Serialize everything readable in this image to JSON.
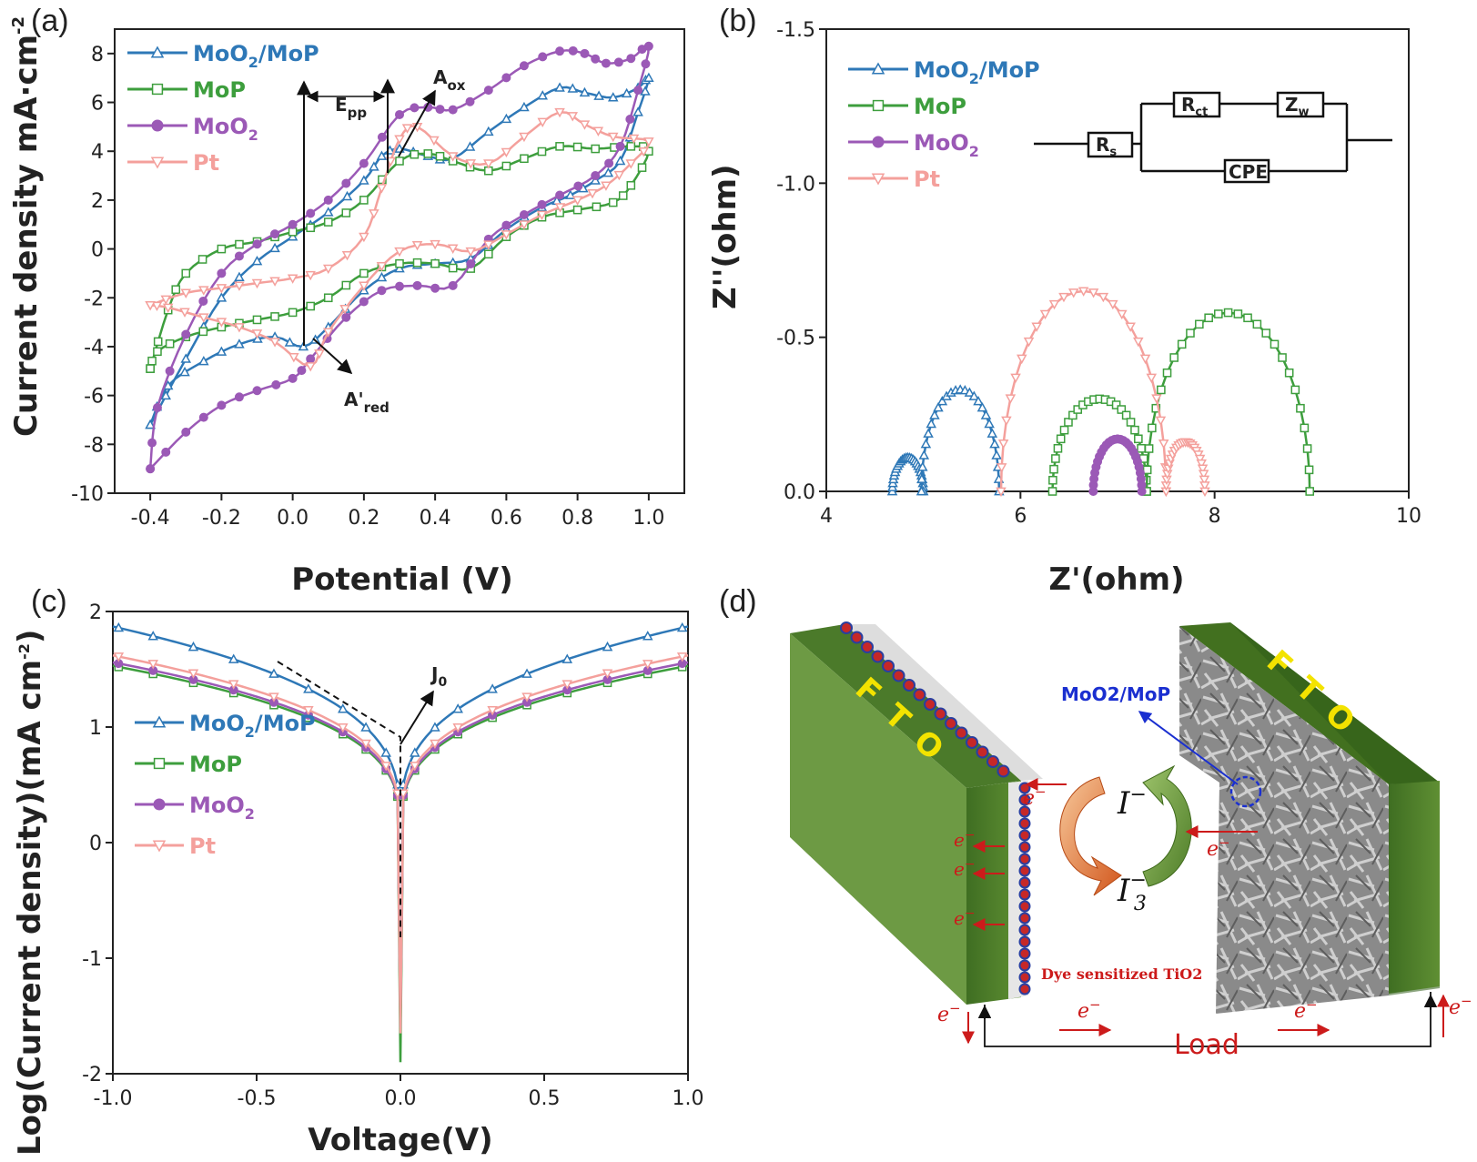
{
  "colors": {
    "MoO2/MoP": "#2e78b7",
    "MoP": "#3d9e3d",
    "MoO2": "#9b59b6",
    "Pt": "#f4a09c",
    "axis": "#222222",
    "fto": "#6b9a3c",
    "red": "#cc1b1b"
  },
  "panels": {
    "a": "(a)",
    "b": "(b)",
    "c": "(c)",
    "d": "(d)"
  },
  "chart_data": [
    {
      "id": "a",
      "type": "line",
      "title": "",
      "xlabel": "Potential (V)",
      "ylabel": "Current density mA·cm",
      "ylabel_sup": "-2",
      "xlim": [
        -0.5,
        1.1
      ],
      "ylim": [
        -10,
        9
      ],
      "xticks": [
        "-0.4",
        "-0.2",
        "0.0",
        "0.2",
        "0.4",
        "0.6",
        "0.8",
        "1.0"
      ],
      "yticks": [
        "-10",
        "-8",
        "-6",
        "-4",
        "-2",
        "0",
        "2",
        "4",
        "6",
        "8"
      ],
      "legend": [
        {
          "name": "MoO",
          "sub": "2",
          "post": "/MoP"
        },
        {
          "name": "MoP",
          "sub": "",
          "post": ""
        },
        {
          "name": "MoO",
          "sub": "2",
          "post": ""
        },
        {
          "name": "Pt",
          "sub": "",
          "post": ""
        }
      ],
      "annotations": {
        "epp": "E",
        "epp_sub": "pp",
        "aox": "A",
        "aox_sub": "ox",
        "ared": "A'",
        "ared_sub": "red"
      },
      "series": [
        {
          "name": "MoO2/MoP",
          "marker": "triangle",
          "forward": [
            [
              -0.4,
              -7.2
            ],
            [
              -0.3,
              -4.5
            ],
            [
              -0.2,
              -2.0
            ],
            [
              -0.1,
              -0.5
            ],
            [
              0.0,
              0.5
            ],
            [
              0.1,
              1.5
            ],
            [
              0.2,
              2.8
            ],
            [
              0.25,
              3.8
            ],
            [
              0.3,
              4.1
            ],
            [
              0.38,
              3.8
            ],
            [
              0.45,
              3.7
            ],
            [
              0.55,
              4.8
            ],
            [
              0.65,
              5.8
            ],
            [
              0.75,
              6.6
            ],
            [
              0.82,
              6.4
            ],
            [
              0.9,
              6.2
            ],
            [
              0.97,
              6.6
            ],
            [
              1.0,
              7.0
            ]
          ],
          "reverse": [
            [
              1.0,
              7.0
            ],
            [
              0.97,
              5.6
            ],
            [
              0.92,
              3.6
            ],
            [
              0.85,
              2.8
            ],
            [
              0.78,
              2.2
            ],
            [
              0.7,
              1.7
            ],
            [
              0.6,
              0.8
            ],
            [
              0.5,
              -0.4
            ],
            [
              0.4,
              -0.6
            ],
            [
              0.3,
              -0.8
            ],
            [
              0.2,
              -1.7
            ],
            [
              0.1,
              -3.2
            ],
            [
              0.03,
              -4.0
            ],
            [
              -0.05,
              -3.6
            ],
            [
              -0.15,
              -3.9
            ],
            [
              -0.25,
              -4.6
            ],
            [
              -0.35,
              -5.6
            ],
            [
              -0.4,
              -7.2
            ]
          ]
        },
        {
          "name": "MoP",
          "marker": "square",
          "forward": [
            [
              -0.4,
              -4.9
            ],
            [
              -0.35,
              -2.5
            ],
            [
              -0.3,
              -1.0
            ],
            [
              -0.2,
              0.0
            ],
            [
              -0.1,
              0.3
            ],
            [
              0.0,
              0.7
            ],
            [
              0.1,
              1.1
            ],
            [
              0.2,
              2.0
            ],
            [
              0.3,
              3.6
            ],
            [
              0.38,
              3.9
            ],
            [
              0.45,
              3.6
            ],
            [
              0.55,
              3.2
            ],
            [
              0.65,
              3.7
            ],
            [
              0.75,
              4.2
            ],
            [
              0.85,
              4.1
            ],
            [
              0.95,
              4.2
            ],
            [
              1.0,
              4.0
            ]
          ],
          "reverse": [
            [
              1.0,
              4.0
            ],
            [
              0.95,
              2.6
            ],
            [
              0.9,
              1.9
            ],
            [
              0.8,
              1.6
            ],
            [
              0.7,
              1.3
            ],
            [
              0.6,
              0.5
            ],
            [
              0.5,
              -0.8
            ],
            [
              0.4,
              -0.6
            ],
            [
              0.3,
              -0.6
            ],
            [
              0.2,
              -1.0
            ],
            [
              0.1,
              -2.0
            ],
            [
              0.0,
              -2.6
            ],
            [
              -0.1,
              -2.9
            ],
            [
              -0.2,
              -3.2
            ],
            [
              -0.3,
              -3.6
            ],
            [
              -0.38,
              -4.2
            ],
            [
              -0.4,
              -4.9
            ]
          ]
        },
        {
          "name": "MoO2",
          "marker": "circle",
          "forward": [
            [
              -0.4,
              -9.0
            ],
            [
              -0.38,
              -6.5
            ],
            [
              -0.3,
              -3.5
            ],
            [
              -0.2,
              -1.0
            ],
            [
              -0.1,
              0.2
            ],
            [
              0.0,
              1.0
            ],
            [
              0.1,
              2.0
            ],
            [
              0.2,
              3.5
            ],
            [
              0.3,
              5.5
            ],
            [
              0.38,
              5.8
            ],
            [
              0.45,
              5.7
            ],
            [
              0.55,
              6.5
            ],
            [
              0.65,
              7.5
            ],
            [
              0.75,
              8.1
            ],
            [
              0.82,
              8.0
            ],
            [
              0.88,
              7.6
            ],
            [
              0.95,
              7.8
            ],
            [
              1.0,
              8.3
            ]
          ],
          "reverse": [
            [
              1.0,
              8.3
            ],
            [
              0.97,
              6.5
            ],
            [
              0.92,
              4.2
            ],
            [
              0.85,
              3.0
            ],
            [
              0.75,
              2.2
            ],
            [
              0.65,
              1.4
            ],
            [
              0.55,
              0.4
            ],
            [
              0.45,
              -1.5
            ],
            [
              0.35,
              -1.5
            ],
            [
              0.25,
              -1.7
            ],
            [
              0.15,
              -2.8
            ],
            [
              0.05,
              -4.5
            ],
            [
              0.0,
              -5.3
            ],
            [
              -0.1,
              -5.8
            ],
            [
              -0.2,
              -6.4
            ],
            [
              -0.3,
              -7.5
            ],
            [
              -0.4,
              -9.0
            ]
          ]
        },
        {
          "name": "Pt",
          "marker": "triangle-down",
          "forward": [
            [
              -0.4,
              -2.3
            ],
            [
              -0.3,
              -1.8
            ],
            [
              -0.2,
              -1.6
            ],
            [
              -0.1,
              -1.4
            ],
            [
              0.0,
              -1.2
            ],
            [
              0.1,
              -0.8
            ],
            [
              0.2,
              0.5
            ],
            [
              0.25,
              2.5
            ],
            [
              0.3,
              4.5
            ],
            [
              0.35,
              5.0
            ],
            [
              0.45,
              3.8
            ],
            [
              0.55,
              3.5
            ],
            [
              0.65,
              4.6
            ],
            [
              0.75,
              5.6
            ],
            [
              0.82,
              5.1
            ],
            [
              0.9,
              4.6
            ],
            [
              1.0,
              4.4
            ]
          ],
          "reverse": [
            [
              1.0,
              4.4
            ],
            [
              0.95,
              3.5
            ],
            [
              0.88,
              2.6
            ],
            [
              0.8,
              2.0
            ],
            [
              0.7,
              1.4
            ],
            [
              0.6,
              0.6
            ],
            [
              0.5,
              -0.1
            ],
            [
              0.4,
              0.2
            ],
            [
              0.3,
              -0.1
            ],
            [
              0.2,
              -1.5
            ],
            [
              0.1,
              -3.4
            ],
            [
              0.05,
              -4.8
            ],
            [
              -0.05,
              -3.8
            ],
            [
              -0.15,
              -3.2
            ],
            [
              -0.25,
              -2.8
            ],
            [
              -0.35,
              -2.4
            ],
            [
              -0.4,
              -2.3
            ]
          ]
        }
      ]
    },
    {
      "id": "b",
      "type": "line",
      "title": "",
      "xlabel": "Z'(ohm)",
      "ylabel": "Z''(ohm)",
      "xlim": [
        4,
        10
      ],
      "ylim": [
        0,
        -1.5
      ],
      "xticks": [
        "4",
        "6",
        "8",
        "10"
      ],
      "yticks": [
        "0.0",
        "-0.5",
        "-1.0",
        "-1.5"
      ],
      "legend": [
        {
          "name": "MoO",
          "sub": "2",
          "post": "/MoP"
        },
        {
          "name": "MoP",
          "sub": "",
          "post": ""
        },
        {
          "name": "MoO",
          "sub": "2",
          "post": ""
        },
        {
          "name": "Pt",
          "sub": "",
          "post": ""
        }
      ],
      "circuit": {
        "rs": "R",
        "rs_sub": "s",
        "rct": "R",
        "rct_sub": "ct",
        "zw": "Z",
        "zw_sub": "w",
        "cpe": "CPE"
      },
      "series": [
        {
          "name": "MoO2/MoP",
          "marker": "triangle",
          "arcs": [
            [
              4.68,
              5.0,
              0.11
            ],
            [
              4.98,
              5.78,
              0.33
            ]
          ]
        },
        {
          "name": "MoP",
          "marker": "square",
          "arcs": [
            [
              6.33,
              7.3,
              0.3
            ],
            [
              7.3,
              8.98,
              0.58
            ]
          ]
        },
        {
          "name": "MoO2",
          "marker": "circle",
          "arcs": [
            [
              6.75,
              7.25,
              0.17
            ]
          ]
        },
        {
          "name": "Pt",
          "marker": "triangle-down",
          "arcs": [
            [
              5.8,
              7.5,
              0.65
            ],
            [
              7.5,
              7.9,
              0.16
            ]
          ]
        }
      ]
    },
    {
      "id": "c",
      "type": "line",
      "title": "",
      "xlabel": "Voltage(V)",
      "ylabel": "Log(Current density)(mA cm",
      "ylabel_sup": "-2",
      "ylabel_post": ")",
      "xlim": [
        -1.0,
        1.0
      ],
      "ylim": [
        -2,
        2
      ],
      "xticks": [
        "-1.0",
        "-0.5",
        "0.0",
        "0.5",
        "1.0"
      ],
      "yticks": [
        "-2",
        "-1",
        "0",
        "1",
        "2"
      ],
      "legend": [
        {
          "name": "MoO",
          "sub": "2",
          "post": "/MoP"
        },
        {
          "name": "MoP",
          "sub": "",
          "post": ""
        },
        {
          "name": "MoO",
          "sub": "2",
          "post": ""
        },
        {
          "name": "Pt",
          "sub": "",
          "post": ""
        }
      ],
      "annotations": {
        "j0": "J",
        "j0_sub": "0"
      },
      "series": [
        {
          "name": "MoO2/MoP",
          "marker": "triangle",
          "end": 1.87,
          "min": -1.7
        },
        {
          "name": "MoP",
          "marker": "square",
          "end": 1.53,
          "min": -1.9
        },
        {
          "name": "MoO2",
          "marker": "circle",
          "end": 1.56,
          "min": -1.6
        },
        {
          "name": "Pt",
          "marker": "triangle-down",
          "end": 1.62,
          "min": -1.65
        }
      ]
    }
  ],
  "diagram_d": {
    "fto": "F T O",
    "catalyst": "MoO2/MoP",
    "iodide": "I",
    "iodide_sup": "−",
    "triiodide": "I",
    "triiodide_sub": "3",
    "triiodide_sup": "−",
    "electron": "e",
    "electron_sup": "−",
    "dye": "Dye sensitized TiO2",
    "load": "Load"
  }
}
